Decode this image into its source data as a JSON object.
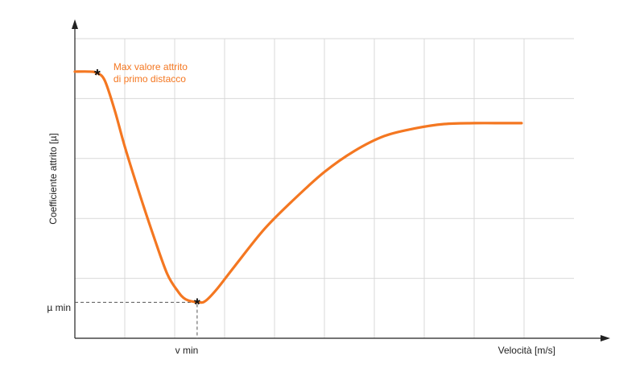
{
  "chart_data": {
    "type": "line",
    "title": "",
    "xlabel": "Velocità [m/s]",
    "ylabel": "Coefficiente attrito [µ]",
    "grid": true,
    "x_tick_labels": [
      "v min"
    ],
    "y_tick_labels": [
      "µ min"
    ],
    "series": [
      {
        "values": [
          [
            0.0,
            0.89
          ],
          [
            0.03,
            0.89
          ],
          [
            0.045,
            0.885
          ],
          [
            0.06,
            0.86
          ],
          [
            0.08,
            0.76
          ],
          [
            0.1,
            0.64
          ],
          [
            0.13,
            0.48
          ],
          [
            0.16,
            0.33
          ],
          [
            0.185,
            0.215
          ],
          [
            0.205,
            0.16
          ],
          [
            0.222,
            0.13
          ],
          [
            0.248,
            0.12
          ],
          [
            0.262,
            0.125
          ],
          [
            0.285,
            0.165
          ],
          [
            0.32,
            0.24
          ],
          [
            0.38,
            0.365
          ],
          [
            0.44,
            0.465
          ],
          [
            0.5,
            0.555
          ],
          [
            0.56,
            0.625
          ],
          [
            0.62,
            0.675
          ],
          [
            0.68,
            0.7
          ],
          [
            0.74,
            0.715
          ],
          [
            0.8,
            0.718
          ],
          [
            0.86,
            0.718
          ],
          [
            0.895,
            0.718
          ]
        ]
      }
    ],
    "annotations": [
      {
        "label": "Max valore attrito\ndi primo distacco",
        "x": 0.045,
        "y": 0.885
      },
      {
        "label": "",
        "x": 0.245,
        "y": 0.12
      }
    ],
    "xlim": [
      0,
      1
    ],
    "ylim": [
      0,
      1
    ],
    "x_gridlines": [
      0.1,
      0.2,
      0.3,
      0.4,
      0.5,
      0.6,
      0.7,
      0.8,
      0.9
    ],
    "y_gridlines": [
      0.2,
      0.4,
      0.6,
      0.8,
      1.0
    ]
  },
  "colors": {
    "curve": "#f47721",
    "annotation": "#f47721",
    "axis": "#222222",
    "grid": "#d9d9d9"
  },
  "markers": {
    "point_icon": "asterisk",
    "glyph": "*"
  }
}
